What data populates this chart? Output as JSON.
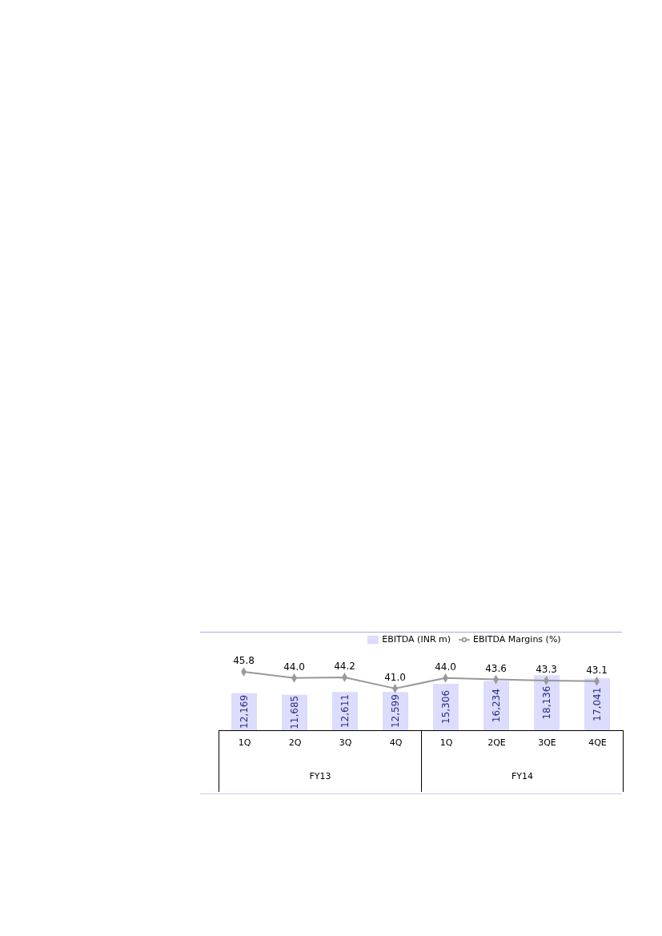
{
  "chart_data": {
    "type": "bar",
    "categories": [
      "1Q",
      "2Q",
      "3Q",
      "4Q",
      "1Q",
      "2QE",
      "3QE",
      "4QE"
    ],
    "annotations": [
      "FY13",
      "FY14"
    ],
    "legend": "top",
    "tick_labels": false,
    "series": [
      {
        "name": "EBITDA (INR m)",
        "color": "#dcdcfc",
        "values": [
          12169,
          11685,
          12611,
          12599,
          15306,
          16234,
          18136,
          17041
        ],
        "value_labels": [
          "12,169",
          "11,685",
          "12,611",
          "12,599",
          "15,306",
          "16,234",
          "18,136",
          "17,041"
        ]
      },
      {
        "name": "EBITDA Margins (%)",
        "type": "line",
        "axis": "y2",
        "color": "#999999",
        "marker": "diamond",
        "values": [
          45.8,
          44.0,
          44.2,
          41.0,
          44.0,
          43.6,
          43.3,
          43.1
        ],
        "value_labels": [
          "45.8",
          "44.0",
          "44.2",
          "41.0",
          "44.0",
          "43.6",
          "43.3",
          "43.1"
        ]
      }
    ]
  }
}
